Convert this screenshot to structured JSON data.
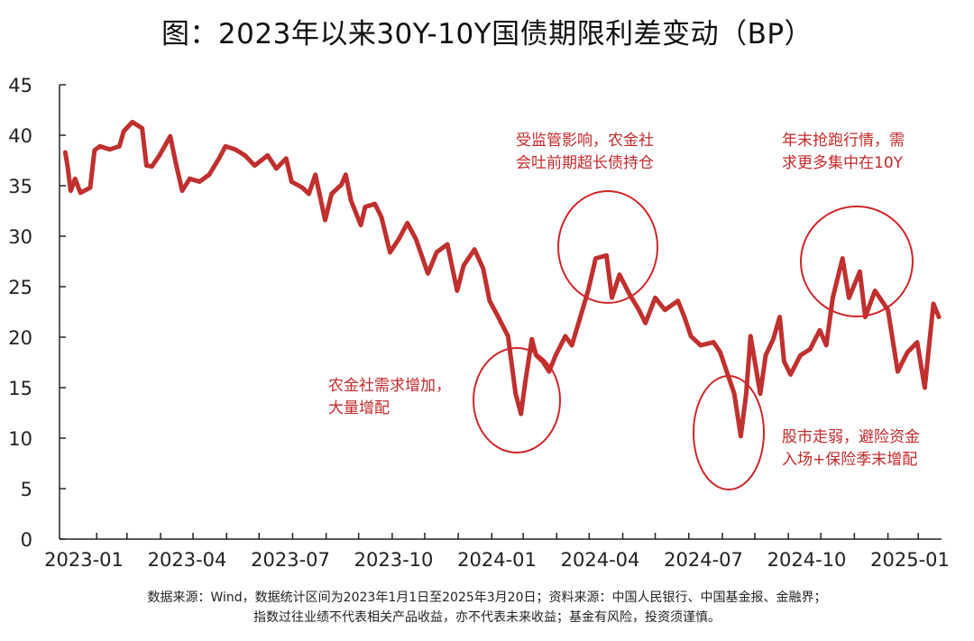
{
  "chart_data": {
    "type": "line",
    "title": "图：2023年以来30Y-10Y国债期限利差变动（BP）",
    "xlabel": "",
    "ylabel": "",
    "ylim": [
      0,
      45
    ],
    "yticks": [
      "0",
      "5",
      "10",
      "15",
      "20",
      "25",
      "30",
      "35",
      "40",
      "45"
    ],
    "xticks": [
      "2023-01",
      "2023-04",
      "2023-07",
      "2023-10",
      "2024-01",
      "2024-04",
      "2024-07",
      "2024-10",
      "2025-01"
    ],
    "grid": false,
    "line_color": "#c0302e",
    "series": [
      {
        "x": [
          "2023-01-03",
          "2023-01-05",
          "2023-01-08",
          "2023-01-12",
          "2023-01-17",
          "2023-01-26",
          "2023-01-30",
          "2023-02-04",
          "2023-02-13",
          "2023-02-22",
          "2023-02-26",
          "2023-03-06",
          "2023-03-15",
          "2023-03-19",
          "2023-03-24",
          "2023-03-31",
          "2023-04-10",
          "2023-04-15",
          "2023-04-21",
          "2023-04-28",
          "2023-05-07",
          "2023-05-16",
          "2023-05-25",
          "2023-05-31",
          "2023-06-09",
          "2023-06-18",
          "2023-06-27",
          "2023-07-09",
          "2023-07-17",
          "2023-07-26",
          "2023-07-31",
          "2023-08-10",
          "2023-08-16",
          "2023-08-22",
          "2023-08-31",
          "2023-09-06",
          "2023-09-15",
          "2023-09-19",
          "2023-09-24",
          "2023-10-03",
          "2023-10-07",
          "2023-10-16",
          "2023-10-22",
          "2023-10-30",
          "2023-11-07",
          "2023-11-15",
          "2023-11-23",
          "2023-12-04",
          "2023-12-12",
          "2023-12-22",
          "2023-12-31",
          "2024-01-06",
          "2024-01-16",
          "2024-01-24",
          "2024-01-30",
          "2024-02-07",
          "2024-02-16",
          "2024-02-23",
          "2024-02-28",
          "2024-03-03",
          "2024-03-09",
          "2024-03-13",
          "2024-03-19",
          "2024-03-25",
          "2024-03-31",
          "2024-04-09",
          "2024-04-15",
          "2024-04-22",
          "2024-04-30",
          "2024-05-07",
          "2024-05-17",
          "2024-05-22",
          "2024-05-29",
          "2024-06-07",
          "2024-06-16",
          "2024-06-22",
          "2024-07-01",
          "2024-07-10",
          "2024-07-22",
          "2024-07-28",
          "2024-08-03",
          "2024-08-12",
          "2024-08-24",
          "2024-08-30",
          "2024-09-05",
          "2024-09-12",
          "2024-09-18",
          "2024-09-23",
          "2024-09-27",
          "2024-10-06",
          "2024-10-11",
          "2024-10-18",
          "2024-10-24",
          "2024-10-28",
          "2024-11-03",
          "2024-11-12",
          "2024-11-21",
          "2024-11-30",
          "2024-12-06",
          "2024-12-12",
          "2024-12-21",
          "2024-12-27",
          "2025-01-06",
          "2025-01-11",
          "2025-01-20",
          "2025-02-01",
          "2025-02-10",
          "2025-02-19",
          "2025-02-28",
          "2025-03-07",
          "2025-03-15",
          "2025-03-20"
        ],
        "y": [
          38.3,
          37.0,
          34.5,
          35.7,
          34.3,
          34.8,
          38.5,
          38.9,
          38.6,
          38.9,
          40.4,
          41.3,
          40.7,
          37.0,
          36.9,
          38.0,
          39.9,
          37.3,
          34.5,
          35.7,
          35.4,
          36.1,
          37.7,
          38.9,
          38.6,
          38.0,
          37.0,
          38.0,
          36.7,
          37.7,
          35.4,
          34.8,
          34.2,
          36.1,
          31.6,
          34.2,
          35.1,
          36.1,
          33.5,
          31.1,
          32.9,
          33.2,
          31.9,
          28.4,
          29.7,
          31.3,
          29.7,
          26.3,
          28.4,
          29.2,
          24.6,
          27.1,
          28.7,
          26.8,
          23.6,
          22.0,
          20.1,
          14.4,
          12.4,
          15.6,
          19.8,
          18.2,
          17.6,
          16.6,
          18.2,
          20.1,
          19.2,
          21.7,
          24.6,
          27.8,
          28.1,
          23.9,
          26.2,
          24.3,
          22.7,
          21.4,
          23.9,
          22.7,
          23.6,
          22.0,
          20.1,
          19.2,
          19.5,
          18.5,
          16.6,
          14.4,
          10.2,
          14.4,
          20.1,
          14.4,
          18.2,
          19.8,
          22.0,
          17.6,
          16.3,
          18.2,
          18.8,
          20.7,
          19.2,
          23.9,
          27.8,
          23.9,
          26.5,
          22.0,
          24.6,
          22.7,
          16.6,
          18.5,
          19.5,
          15.0,
          23.3,
          22.0
        ]
      }
    ],
    "annotations": [
      {
        "text": "农金社需求增加，\n大量增配"
      },
      {
        "text": "受监管影响，农金社\n会吐前期超长债持仓"
      },
      {
        "text": "年末抢跑行情，需\n求更多集中在10Y"
      },
      {
        "text": "股市走弱，避险资金\n入场+保险季末增配"
      }
    ]
  },
  "footer": {
    "line1": "数据来源：Wind，数据统计区间为2023年1月1日至2025年3月20日；资料来源：中国人民银行、中国基金报、金融界；",
    "line2": "指数过往业绩不代表相关产品收益，亦不代表未来收益；基金有风险，投资须谨慎。"
  }
}
